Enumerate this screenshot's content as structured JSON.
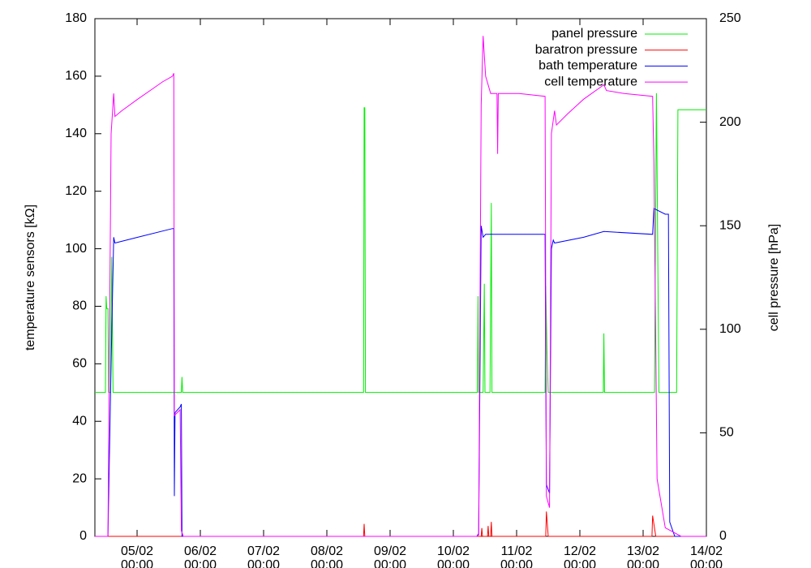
{
  "chart_data": {
    "type": "line",
    "y_label": "temperature sensors [kΩ]",
    "y2_label": "cell pressure [hPa]",
    "xlim": [
      4.333,
      14
    ],
    "xticks": [
      {
        "value": 5,
        "label": "05/02 00:00"
      },
      {
        "value": 6,
        "label": "06/02 00:00"
      },
      {
        "value": 7,
        "label": "07/02 00:00"
      },
      {
        "value": 8,
        "label": "08/02 00:00"
      },
      {
        "value": 9,
        "label": "09/02 00:00"
      },
      {
        "value": 10,
        "label": "10/02 00:00"
      },
      {
        "value": 11,
        "label": "11/02 00:00"
      },
      {
        "value": 12,
        "label": "12/02 00:00"
      },
      {
        "value": 13,
        "label": "13/02 00:00"
      },
      {
        "value": 14,
        "label": "14/02 00:00"
      }
    ],
    "ylim": [
      0,
      180
    ],
    "yticks": [
      0,
      20,
      40,
      60,
      80,
      100,
      120,
      140,
      160,
      180
    ],
    "y2lim": [
      0,
      250
    ],
    "y2ticks": [
      0,
      50,
      100,
      150,
      200,
      250
    ],
    "legend": "upper right",
    "series": [
      {
        "name": "panel pressure",
        "color": "#00ee00",
        "axis": "y2",
        "x": [
          4.333,
          4.5,
          4.51,
          4.52,
          4.54,
          4.55,
          4.58,
          4.6,
          4.62,
          5.7,
          5.71,
          5.72,
          8.58,
          8.59,
          8.6,
          8.61,
          10.38,
          10.39,
          10.4,
          10.47,
          10.49,
          10.5,
          10.58,
          10.6,
          10.61,
          11.45,
          11.46,
          11.48,
          11.5,
          12.37,
          12.38,
          12.39,
          13.18,
          13.21,
          13.25,
          13.53,
          13.55,
          14
        ],
        "values": [
          69.5,
          69.5,
          116,
          110,
          110,
          69.5,
          69.5,
          135,
          69.5,
          69.5,
          77,
          69.5,
          69.5,
          207,
          207,
          69.5,
          69.5,
          116,
          69.5,
          69.5,
          122,
          69.5,
          69.5,
          161,
          69.5,
          69.5,
          121,
          90,
          69.5,
          69.5,
          98,
          69.5,
          69.5,
          214,
          69.5,
          69.5,
          206,
          206
        ]
      },
      {
        "name": "baratron pressure",
        "color": "#ff0000",
        "axis": "y2",
        "x": [
          4.333,
          8.58,
          8.59,
          8.6,
          10.44,
          10.45,
          10.46,
          10.54,
          10.55,
          10.56,
          10.59,
          10.6,
          10.61,
          11.46,
          11.47,
          11.5,
          13.14,
          13.15,
          13.2,
          14
        ],
        "values": [
          0,
          0,
          6,
          0,
          0,
          4,
          0,
          0,
          5,
          0,
          0,
          7,
          0,
          0,
          12,
          0,
          0,
          10,
          0,
          0
        ]
      },
      {
        "name": "bath temperature",
        "color": "#0000ff",
        "axis": "y",
        "x": [
          4.333,
          4.54,
          4.59,
          4.63,
          4.65,
          5.01,
          5.56,
          5.58,
          5.59,
          5.6,
          5.68,
          5.7,
          5.71,
          10.37,
          10.4,
          10.44,
          10.47,
          10.51,
          10.7,
          11.45,
          11.47,
          11.52,
          11.55,
          11.58,
          11.6,
          12.06,
          12.38,
          13.15,
          13.17,
          13.35,
          13.4,
          13.42,
          13.5,
          14
        ],
        "values": [
          0,
          0,
          60,
          104,
          102,
          104,
          107,
          107,
          14,
          43,
          45,
          46,
          0,
          0,
          1,
          108,
          104,
          105,
          105,
          105,
          18,
          15,
          100,
          103,
          102,
          104,
          106,
          105,
          114,
          112,
          112,
          5,
          0,
          0
        ]
      },
      {
        "name": "cell temperature",
        "color": "#ff00ff",
        "axis": "y",
        "x": [
          4.333,
          4.54,
          4.59,
          4.63,
          4.65,
          4.76,
          5.01,
          5.27,
          5.4,
          5.56,
          5.58,
          5.59,
          5.68,
          5.7,
          5.73,
          10.37,
          10.4,
          10.44,
          10.47,
          10.51,
          10.59,
          10.69,
          10.7,
          10.71,
          11.04,
          11.45,
          11.47,
          11.52,
          11.55,
          11.6,
          11.63,
          11.81,
          12.06,
          12.38,
          12.42,
          12.7,
          13.15,
          13.17,
          13.22,
          13.35,
          13.6,
          14
        ],
        "values": [
          0,
          0,
          140,
          154,
          146,
          148,
          152,
          156,
          158,
          160,
          161,
          42,
          44,
          2,
          0,
          0,
          0.5,
          150,
          174,
          160,
          154,
          154,
          133,
          154,
          154,
          153,
          14,
          10,
          140,
          148,
          143,
          147,
          152,
          157,
          155,
          154,
          153,
          130,
          20,
          3,
          0,
          0
        ]
      }
    ]
  }
}
